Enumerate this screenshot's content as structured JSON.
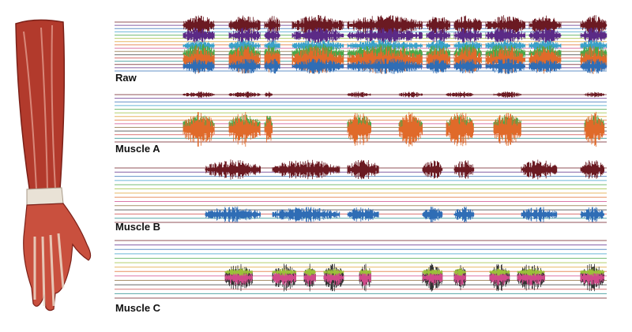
{
  "panels": [
    {
      "label": "Raw"
    },
    {
      "label": "Muscle A"
    },
    {
      "label": "Muscle B"
    },
    {
      "label": "Muscle C"
    }
  ]
}
